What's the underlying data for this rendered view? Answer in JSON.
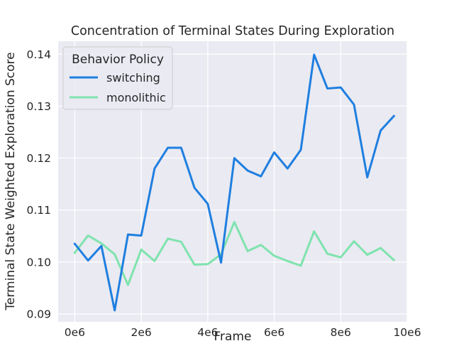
{
  "chart_data": {
    "type": "line",
    "title": "Concentration of Terminal States During Exploration",
    "xlabel": "Frame",
    "ylabel": "Terminal State Weighted Exploration Score",
    "xlim": [
      -500000,
      10000000
    ],
    "ylim": [
      0.0885,
      0.1425
    ],
    "x_ticks": [
      0,
      2000000,
      4000000,
      6000000,
      8000000,
      10000000
    ],
    "x_tick_labels": [
      "0e6",
      "2e6",
      "4e6",
      "6e6",
      "8e6",
      "10e6"
    ],
    "y_ticks": [
      0.09,
      0.1,
      0.11,
      0.12,
      0.13,
      0.14
    ],
    "y_tick_labels": [
      "0.09",
      "0.10",
      "0.11",
      "0.12",
      "0.13",
      "0.14"
    ],
    "grid": true,
    "legend": {
      "title": "Behavior Policy",
      "position": "top-left"
    },
    "x": [
      0,
      400000,
      800000,
      1200000,
      1600000,
      2000000,
      2400000,
      2800000,
      3200000,
      3600000,
      4000000,
      4400000,
      4800000,
      5200000,
      5600000,
      6000000,
      6400000,
      6800000,
      7200000,
      7600000,
      8000000,
      8400000,
      8800000,
      9200000,
      9600000
    ],
    "series": [
      {
        "name": "switching",
        "color": "#1f7fe0",
        "values": [
          0.1035,
          0.1003,
          0.1031,
          0.0907,
          0.1053,
          0.1051,
          0.118,
          0.122,
          0.122,
          0.1143,
          0.1112,
          0.0999,
          0.12,
          0.1176,
          0.1165,
          0.1211,
          0.118,
          0.1216,
          0.1399,
          0.1334,
          0.1336,
          0.1303,
          0.1163,
          0.1253,
          0.1281
        ]
      },
      {
        "name": "monolithic",
        "color": "#7fe3ae",
        "values": [
          0.1018,
          0.1051,
          0.1036,
          0.1015,
          0.0956,
          0.1024,
          0.1002,
          0.1045,
          0.1039,
          0.0995,
          0.0996,
          0.1015,
          0.1077,
          0.1021,
          0.1033,
          0.1012,
          0.1002,
          0.0993,
          0.1059,
          0.1016,
          0.1009,
          0.104,
          0.1014,
          0.1027,
          0.1004
        ]
      }
    ]
  },
  "colors": {
    "plot_background": "#eaeaf2",
    "grid": "#ffffff",
    "text": "#262626"
  }
}
